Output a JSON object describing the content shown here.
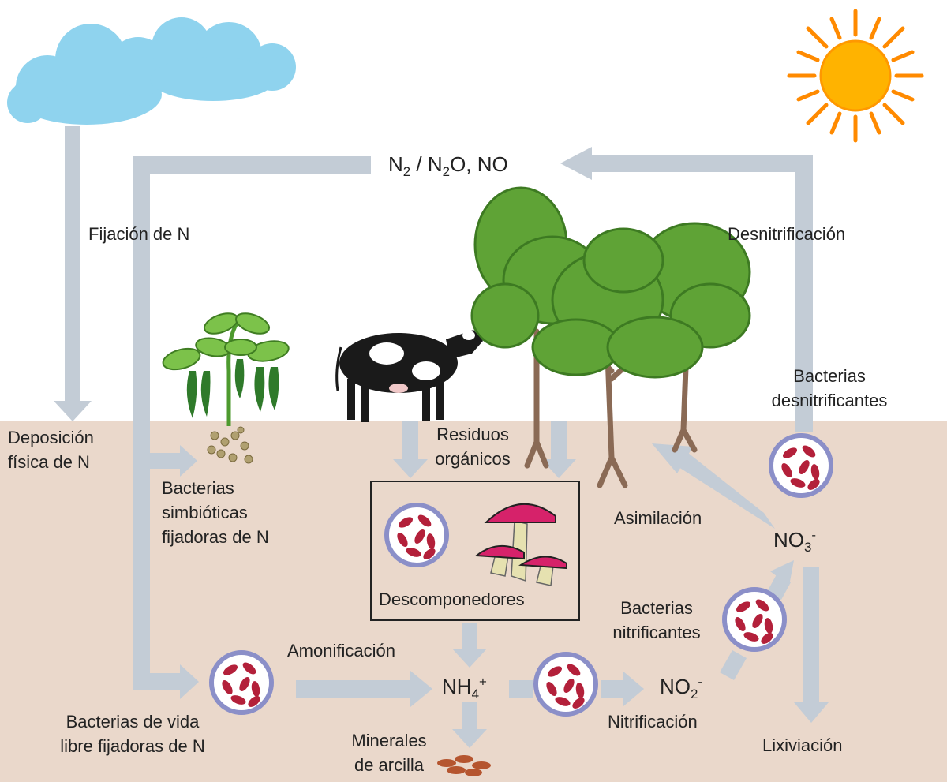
{
  "labels": {
    "n2": "N",
    "n2_sub": "2",
    "slash": "/",
    "n2o": "N",
    "n2o_sub": "2",
    "n2o_rest": "O, NO",
    "fijacion": "Fijación de N",
    "desnitrificacion": "Desnitrificación",
    "deposicion_l1": "Deposición",
    "deposicion_l2": "física de N",
    "bact_desnit_l1": "Bacterias",
    "bact_desnit_l2": "desnitrificantes",
    "residuos_l1": "Residuos",
    "residuos_l2": "orgánicos",
    "bact_simb_l1": "Bacterias",
    "bact_simb_l2": "simbióticas",
    "bact_simb_l3": "fijadoras de N",
    "asimilacion": "Asimilación",
    "no3": "NO",
    "no3_sub": "3",
    "no3_sup": "-",
    "descomponedores": "Descomponedores",
    "bact_nitrif_l1": "Bacterias",
    "bact_nitrif_l2": "nitrificantes",
    "amonificacion": "Amonificación",
    "nh4": "NH",
    "nh4_sub": "4",
    "nh4_sup": "+",
    "no2": "NO",
    "no2_sub": "2",
    "no2_sup": "-",
    "nitrificacion": "Nitrificación",
    "bact_vida_l1": "Bacterias de vida",
    "bact_vida_l2": "libre fijadoras de N",
    "minerales_l1": "Minerales",
    "minerales_l2": "de arcilla",
    "lixiviacion": "Lixiviación"
  },
  "colors": {
    "sky": "#ffffff",
    "soil": "#ead8cb",
    "arrow": "#c3ccd6",
    "cloud": "#8fd3ee",
    "sun": "#ffb300",
    "bacteria": "#b3203a",
    "circle_ring": "#8b8fc8"
  },
  "icons": [
    "cloud-icon",
    "sun-icon",
    "bean-plant-icon",
    "cow-icon",
    "tree-icon",
    "mushroom-icon",
    "bacteria-icon",
    "clay-icon"
  ]
}
